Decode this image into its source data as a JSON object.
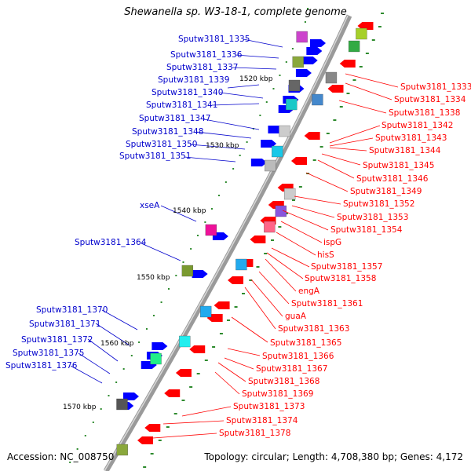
{
  "title": "Shewanella sp. W3-18-1, complete genome",
  "footer": {
    "accession": "Accession: NC_008750",
    "topology": "Topology: circular; Length: 4,708,380 bp; Genes: 4,172"
  },
  "colors": {
    "backbone": "#9a9a9a",
    "forward_strand": "#0000ff",
    "reverse_strand": "#ff0000",
    "tick": "#2e8b2e",
    "label_forward": "#0000cc",
    "label_reverse": "#ff0000"
  },
  "scale_labels": [
    "1520 kbp",
    "1530 kbp",
    "1540 kbp",
    "1550 kbp",
    "1560 kbp",
    "1570 kbp"
  ],
  "forward_labels": [
    "Sputw3181_1335",
    "Sputw3181_1336",
    "Sputw3181_1337",
    "Sputw3181_1339",
    "Sputw3181_1340",
    "Sputw3181_1341",
    "Sputw3181_1347",
    "Sputw3181_1348",
    "Sputw3181_1350",
    "Sputw3181_1351",
    "xseA",
    "Sputw3181_1364",
    "Sputw3181_1370",
    "Sputw3181_1371",
    "Sputw3181_1372",
    "Sputw3181_1375",
    "Sputw3181_1376"
  ],
  "reverse_labels": [
    "Sputw3181_1333",
    "Sputw3181_1334",
    "Sputw3181_1338",
    "Sputw3181_1342",
    "Sputw3181_1343",
    "Sputw3181_1344",
    "Sputw3181_1345",
    "Sputw3181_1346",
    "Sputw3181_1349",
    "Sputw3181_1352",
    "Sputw3181_1353",
    "Sputw3181_1354",
    "ispG",
    "hisS",
    "Sputw3181_1357",
    "Sputw3181_1358",
    "engA",
    "Sputw3181_1361",
    "guaA",
    "Sputw3181_1363",
    "Sputw3181_1365",
    "Sputw3181_1366",
    "Sputw3181_1367",
    "Sputw3181_1368",
    "Sputw3181_1369",
    "Sputw3181_1373",
    "Sputw3181_1374",
    "Sputw3181_1378"
  ]
}
